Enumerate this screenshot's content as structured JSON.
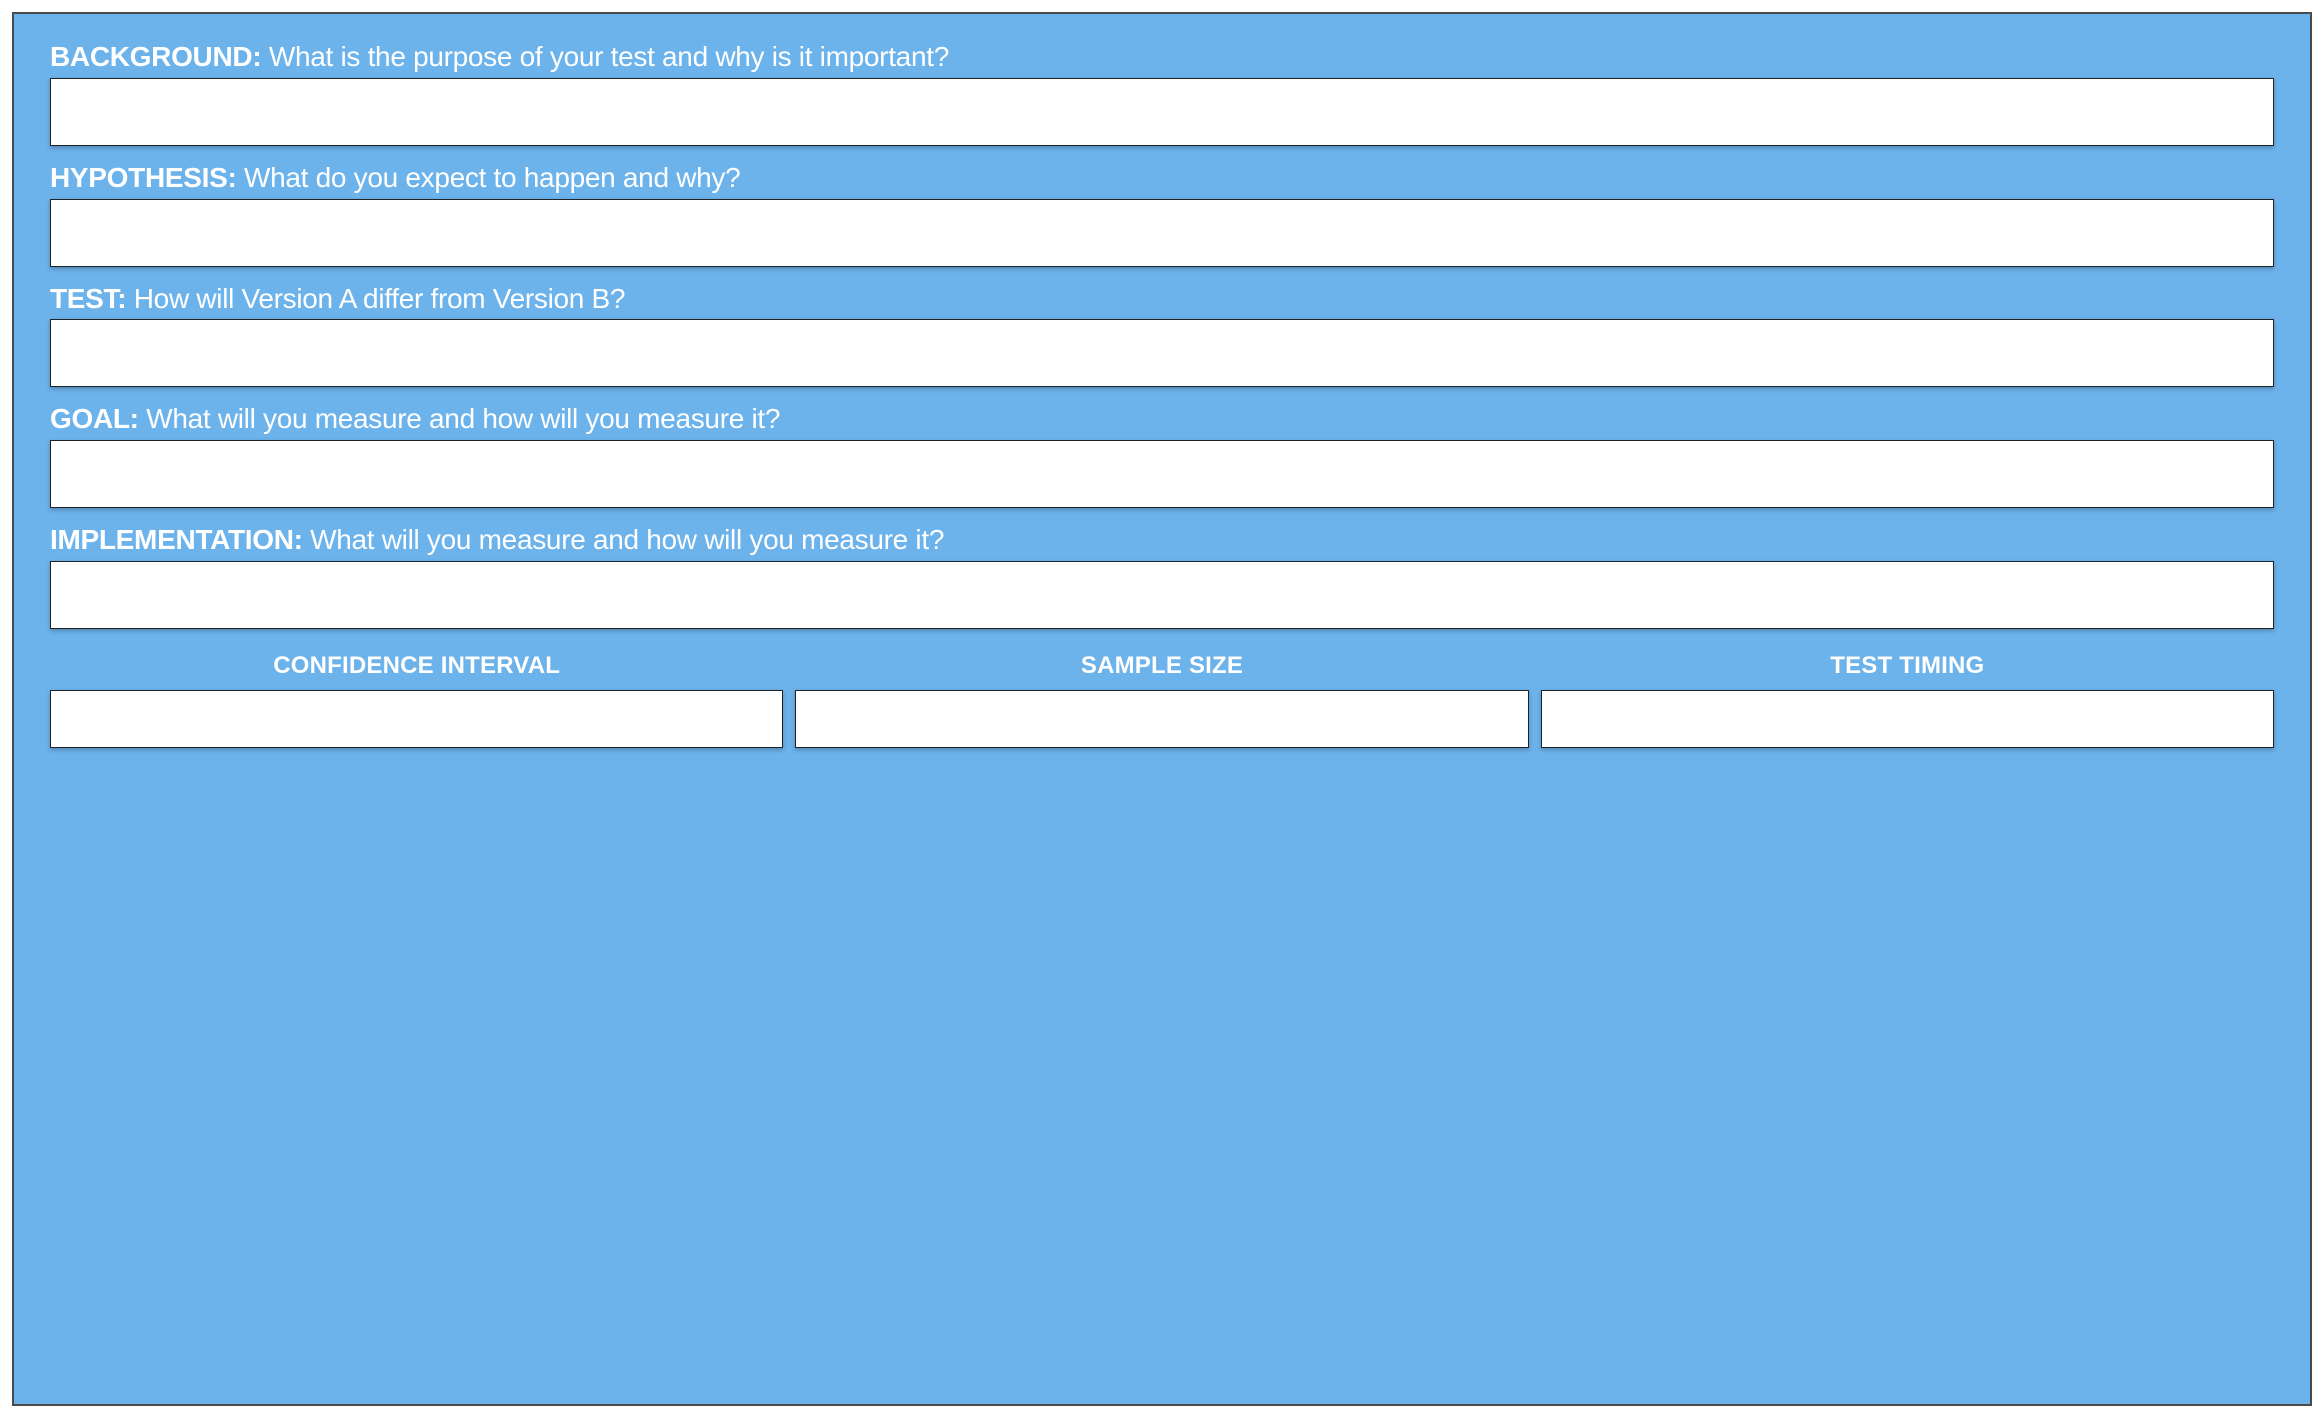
{
  "colors": {
    "container_bg": "#6cb2eb",
    "container_border": "#4a4a4a",
    "text": "#ffffff",
    "input_bg": "#ffffff",
    "input_border": "#222222",
    "shadow": "rgba(0,0,0,0.25)"
  },
  "typography": {
    "label_fontsize": 28,
    "bottom_label_fontsize": 24,
    "bold_weight": 800,
    "light_weight": 300
  },
  "layout": {
    "input_height": 68,
    "bottom_input_height": 58,
    "container_padding": "24px 36px 22px 36px",
    "bottom_gap": 12
  },
  "sections": [
    {
      "title": "BACKGROUND:",
      "prompt": " What is the purpose of your test and why is it important?"
    },
    {
      "title": "HYPOTHESIS:",
      "prompt": " What do you expect to happen and why?"
    },
    {
      "title": "TEST:",
      "prompt": " How will Version A differ from Version B?"
    },
    {
      "title": "GOAL:",
      "prompt": " What will you measure and how will you measure it?"
    },
    {
      "title": "IMPLEMENTATION:",
      "prompt": " What will you measure and how will you measure it?"
    }
  ],
  "bottom": [
    {
      "label": "CONFIDENCE INTERVAL"
    },
    {
      "label": "SAMPLE SIZE"
    },
    {
      "label": "TEST TIMING"
    }
  ]
}
